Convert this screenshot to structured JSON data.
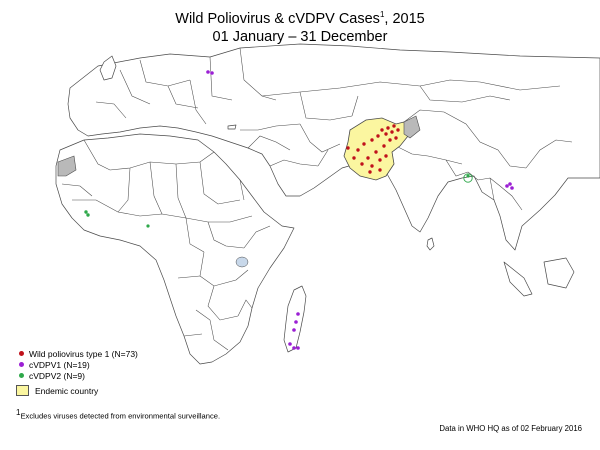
{
  "title": {
    "line1": "Wild Poliovirus & cVDPV Cases",
    "line1_sup": "1",
    "line1_suffix": ", 2015",
    "line2": "01 January – 31 December"
  },
  "legend": {
    "items": [
      {
        "label": "Wild poliovirus type 1 (N=73)",
        "color": "#c0111b"
      },
      {
        "label": "cVDPV1 (N=19)",
        "color": "#9b1fd4"
      },
      {
        "label": "cVDPV2 (N=9)",
        "color": "#2ea84a"
      }
    ],
    "endemic": {
      "label": "Endemic country",
      "color": "#fbf6a0"
    }
  },
  "footnote": {
    "sup": "1",
    "text": "Excludes viruses detected from environmental surveillance."
  },
  "credit": "Data in WHO HQ as of 02 February 2016",
  "colors": {
    "land": "#ffffff",
    "border": "#4a4a4a",
    "excluded": "#b9b9b9",
    "lake": "#c8d8ea"
  }
}
